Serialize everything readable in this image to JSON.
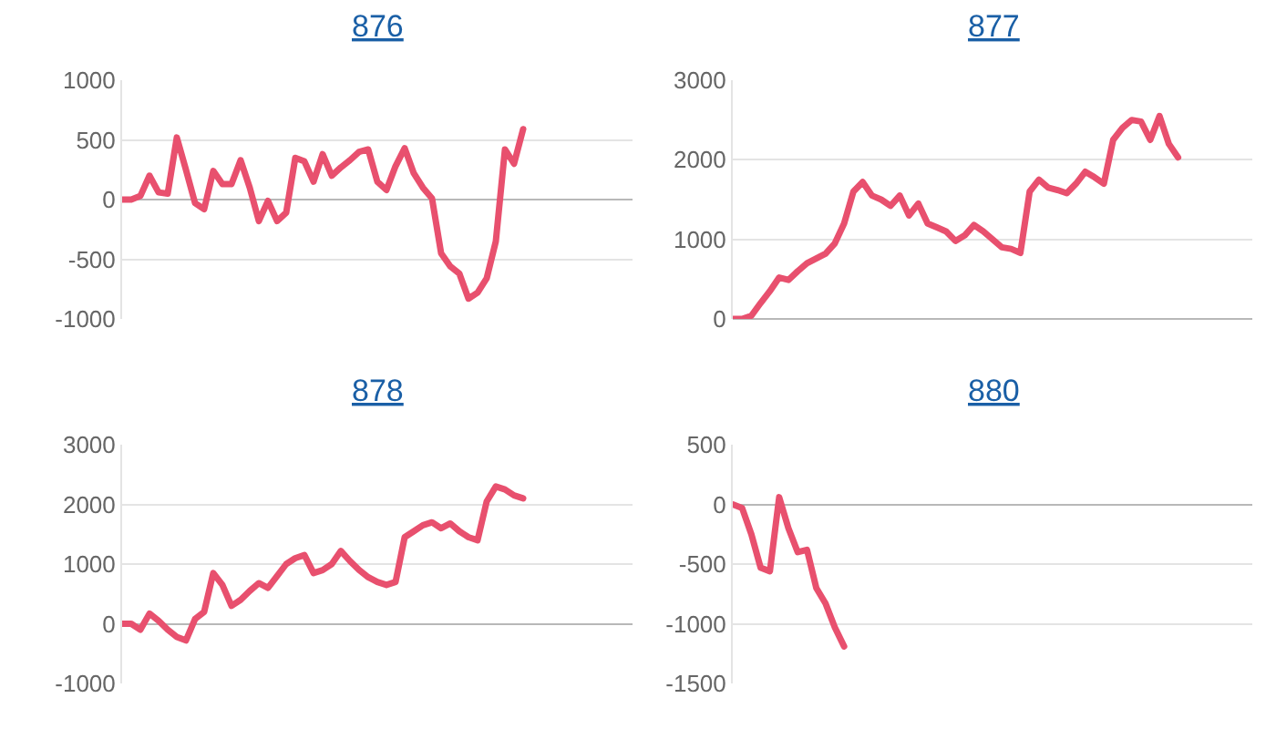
{
  "chart_data": [
    {
      "type": "line",
      "title": "876",
      "categories": [
        null,
        null,
        null,
        null,
        null,
        null,
        null,
        null,
        null,
        null,
        null,
        null,
        null,
        null,
        null,
        null,
        null,
        null,
        null,
        null,
        null,
        null,
        null,
        null,
        null,
        null,
        null,
        null,
        null,
        null,
        null,
        null,
        null,
        null,
        null,
        null,
        null,
        null,
        null,
        null,
        null,
        null,
        null,
        null,
        null,
        null,
        null,
        null,
        null,
        null,
        null,
        null,
        null,
        null,
        null,
        null,
        null
      ],
      "values": [
        0,
        0,
        30,
        200,
        60,
        50,
        520,
        250,
        -30,
        -80,
        240,
        130,
        130,
        330,
        100,
        -180,
        -10,
        -180,
        -110,
        350,
        320,
        150,
        380,
        200,
        270,
        330,
        400,
        420,
        150,
        80,
        280,
        430,
        220,
        100,
        10,
        -450,
        -560,
        -620,
        -830,
        -780,
        -660,
        -350,
        420,
        300,
        590,
        null,
        null,
        null,
        null,
        null,
        null,
        null,
        null,
        null,
        null,
        null,
        null
      ],
      "color": "#e8506e",
      "ylim": [
        -1000,
        1000
      ],
      "yticks": [
        -1000,
        -500,
        0,
        500,
        1000
      ],
      "grid": "y",
      "marker": "none",
      "tick_labels": "y"
    },
    {
      "type": "line",
      "title": "877",
      "categories": [
        null,
        null,
        null,
        null,
        null,
        null,
        null,
        null,
        null,
        null,
        null,
        null,
        null,
        null,
        null,
        null,
        null,
        null,
        null,
        null,
        null,
        null,
        null,
        null,
        null,
        null,
        null,
        null,
        null,
        null,
        null,
        null,
        null,
        null,
        null,
        null,
        null,
        null,
        null,
        null,
        null,
        null,
        null,
        null,
        null,
        null,
        null,
        null,
        null,
        null,
        null,
        null,
        null,
        null,
        null,
        null,
        null
      ],
      "values": [
        0,
        0,
        40,
        200,
        350,
        520,
        490,
        600,
        700,
        760,
        820,
        950,
        1200,
        1600,
        1720,
        1550,
        1500,
        1420,
        1550,
        1300,
        1450,
        1200,
        1150,
        1100,
        980,
        1050,
        1180,
        1100,
        1000,
        900,
        880,
        830,
        1600,
        1750,
        1650,
        1620,
        1580,
        1700,
        1850,
        1780,
        1700,
        2250,
        2400,
        2500,
        2480,
        2250,
        2550,
        2200,
        2030,
        null,
        null,
        null,
        null,
        null,
        null,
        null,
        null
      ],
      "color": "#e8506e",
      "ylim": [
        0,
        3000
      ],
      "yticks": [
        0,
        1000,
        2000,
        3000
      ],
      "grid": "y",
      "marker": "none",
      "tick_labels": "y"
    },
    {
      "type": "line",
      "title": "878",
      "categories": [
        null,
        null,
        null,
        null,
        null,
        null,
        null,
        null,
        null,
        null,
        null,
        null,
        null,
        null,
        null,
        null,
        null,
        null,
        null,
        null,
        null,
        null,
        null,
        null,
        null,
        null,
        null,
        null,
        null,
        null,
        null,
        null,
        null,
        null,
        null,
        null,
        null,
        null,
        null,
        null,
        null,
        null,
        null,
        null,
        null,
        null,
        null,
        null,
        null,
        null,
        null,
        null,
        null,
        null,
        null,
        null,
        null
      ],
      "values": [
        0,
        0,
        -100,
        170,
        50,
        -100,
        -220,
        -280,
        80,
        200,
        850,
        650,
        300,
        400,
        550,
        680,
        600,
        800,
        1000,
        1100,
        1150,
        850,
        900,
        1000,
        1220,
        1050,
        900,
        780,
        700,
        650,
        700,
        1450,
        1550,
        1650,
        1700,
        1600,
        1680,
        1550,
        1450,
        1400,
        2050,
        2300,
        2250,
        2150,
        2100,
        null,
        null,
        null,
        null,
        null,
        null,
        null,
        null,
        null,
        null,
        null,
        null
      ],
      "color": "#e8506e",
      "ylim": [
        -1000,
        3000
      ],
      "yticks": [
        -1000,
        0,
        1000,
        2000,
        3000
      ],
      "grid": "y",
      "marker": "none",
      "tick_labels": "y"
    },
    {
      "type": "line",
      "title": "880",
      "categories": [
        null,
        null,
        null,
        null,
        null,
        null,
        null,
        null,
        null,
        null,
        null,
        null,
        null,
        null,
        null,
        null,
        null,
        null,
        null,
        null,
        null,
        null,
        null,
        null,
        null,
        null,
        null,
        null,
        null,
        null,
        null,
        null,
        null,
        null,
        null,
        null,
        null,
        null,
        null,
        null,
        null,
        null,
        null,
        null,
        null,
        null,
        null,
        null,
        null,
        null,
        null,
        null,
        null,
        null,
        null,
        null,
        null
      ],
      "values": [
        0,
        -30,
        -250,
        -530,
        -560,
        60,
        -200,
        -400,
        -380,
        -700,
        -830,
        -1030,
        -1190,
        null,
        null,
        null,
        null,
        null,
        null,
        null,
        null,
        null,
        null,
        null,
        null,
        null,
        null,
        null,
        null,
        null,
        null,
        null,
        null,
        null,
        null,
        null,
        null,
        null,
        null,
        null,
        null,
        null,
        null,
        null,
        null,
        null,
        null,
        null,
        null,
        null,
        null,
        null,
        null,
        null,
        null,
        null,
        null
      ],
      "color": "#e8506e",
      "ylim": [
        -1500,
        500
      ],
      "yticks": [
        -1500,
        -1000,
        -500,
        0,
        500
      ],
      "grid": "y",
      "marker": "none",
      "tick_labels": "y"
    }
  ]
}
